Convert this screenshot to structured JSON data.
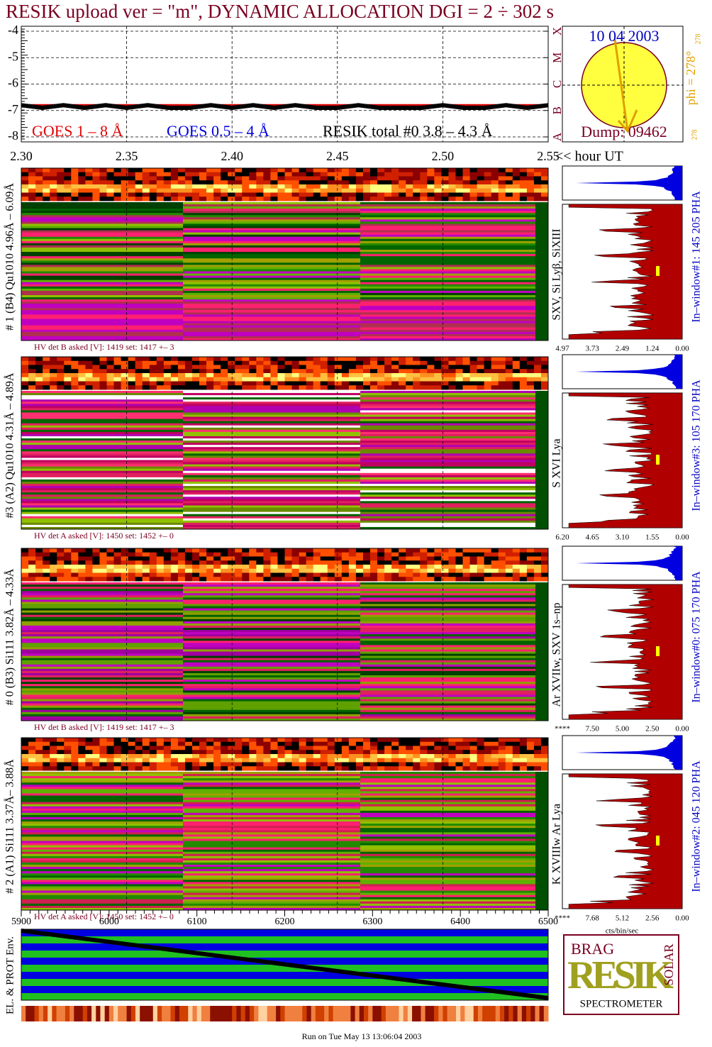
{
  "title": "RESIK upload ver = \"m\", DYNAMIC ALLOCATION  DGI =   2 ÷ 302 s",
  "chart_data": {
    "type": "line",
    "x": [
      2.3,
      2.31,
      2.32,
      2.33,
      2.34,
      2.35,
      2.36,
      2.37,
      2.38,
      2.39,
      2.4,
      2.41,
      2.42,
      2.43,
      2.44,
      2.45,
      2.46,
      2.47,
      2.48,
      2.49,
      2.5,
      2.51,
      2.52,
      2.53,
      2.54,
      2.55
    ],
    "series": [
      {
        "name": "GOES 1 – 8 Å",
        "color": "#e00000",
        "values": [
          -6.8,
          -6.8,
          -6.8,
          -6.8,
          -6.8,
          -6.8,
          -6.8,
          -6.8,
          -6.8,
          -6.8,
          -6.8,
          -6.8,
          -6.8,
          -6.8,
          -6.8,
          -6.8,
          -6.8,
          -6.8,
          -6.8,
          -6.8,
          -6.8,
          -6.8,
          -6.8,
          -6.8,
          -6.8,
          -6.8
        ]
      },
      {
        "name": "GOES 0.5 – 4 Å",
        "color": "#0000e0",
        "values": [
          null,
          null,
          null,
          null,
          null,
          null,
          null,
          null,
          null,
          null,
          null,
          null,
          null,
          null,
          null,
          null,
          null,
          null,
          null,
          null,
          null,
          null,
          null,
          null,
          null,
          null
        ]
      },
      {
        "name": "RESIK total #0  3.8 – 4.3 Å",
        "color": "#000000",
        "values": [
          -6.8,
          -6.9,
          -6.8,
          -6.9,
          -6.8,
          -6.9,
          -6.8,
          -6.9,
          -6.9,
          -6.8,
          -6.9,
          -6.8,
          -6.9,
          -6.8,
          -6.9,
          -6.9,
          -6.8,
          -6.9,
          -6.9,
          -6.9,
          -6.8,
          -6.9,
          -6.9,
          -6.8,
          -6.9,
          -6.8
        ]
      }
    ],
    "xlim": [
      2.3,
      2.55
    ],
    "xticks": [
      {
        "value": 2.3,
        "label": "2.30"
      },
      2.35,
      {
        "value": 2.4,
        "label": "2.40"
      },
      2.45,
      {
        "value": 2.5,
        "label": "2.50"
      },
      2.55
    ],
    "x_label": "<< hour UT",
    "ylim": [
      -8,
      -4
    ],
    "yticks": [
      -8,
      -7,
      -6,
      -5,
      -4
    ],
    "y2lim": [
      -8,
      -4
    ],
    "y2ticks": [
      {
        "value": -8,
        "label": "A"
      },
      {
        "value": -7,
        "label": "B"
      },
      {
        "value": -6,
        "label": "C"
      },
      {
        "value": -5,
        "label": "M"
      },
      {
        "value": -4,
        "label": "X"
      }
    ],
    "grid": true
  },
  "sun_panel": {
    "date": "10 04 2003",
    "phi": "phi = 278°",
    "phi_small": "278",
    "phi_bottom": "278",
    "dump": "Dump: 09462"
  },
  "detectors": [
    {
      "label": "# 1 (B4) Qu1010 4.96Å – 6.09Å",
      "lines": "SXV, Si Lyβ, SiXIII",
      "hv": "HV det B asked [V]:  1419 set:  1417 +–   3",
      "window": "In–window#1:  145 205 PHA",
      "ticks": [
        "4.97",
        "3.73",
        "2.49",
        "1.24",
        "0.00"
      ]
    },
    {
      "label": "#3 (A2) Qu1010  4.31Å – 4.89Å",
      "lines": "S XVI Lya",
      "hv": "HV det A asked [V]:  1450 set:  1452 +–   0",
      "window": "In–window#3:  105 170 PHA",
      "ticks": [
        "6.20",
        "4.65",
        "3.10",
        "1.55",
        "0.00"
      ]
    },
    {
      "label": "# 0 (B3) Si111  3.82Å – 4.33Å",
      "lines": "Ar XVIIw, SXV 1s–np",
      "hv": "HV det B asked [V]:  1419 set:  1417 +–   3",
      "window": "In–window#0:  075 170 PHA",
      "ticks": [
        "****",
        "7.50",
        "5.00",
        "2.50",
        "0.00"
      ]
    },
    {
      "label": "# 2 (A1) Si111  3.37Å– 3.88Å",
      "lines": "K XVIIIw  Ar Lya",
      "hv": "HV det A asked [V]:  1450 set:  1452 +–   0",
      "window": "In–window#2:  045 120 PHA",
      "ticks": [
        "****",
        "7.68",
        "5.12",
        "2.56",
        "0.00"
      ]
    }
  ],
  "hist_axis_label": "cts/bin/sec",
  "bottom_panel": {
    "label": "EL. & PROT Env.",
    "ticks": [
      "5900",
      "6000",
      "6100",
      "6200",
      "6300",
      "6400",
      "6500"
    ]
  },
  "logo": {
    "top": "BRAG",
    "main": "RESIK",
    "side": "SOLAR",
    "bottom": "SPECTROMETER"
  },
  "footer": "Run on Tue May 13 13:06:04 2003"
}
